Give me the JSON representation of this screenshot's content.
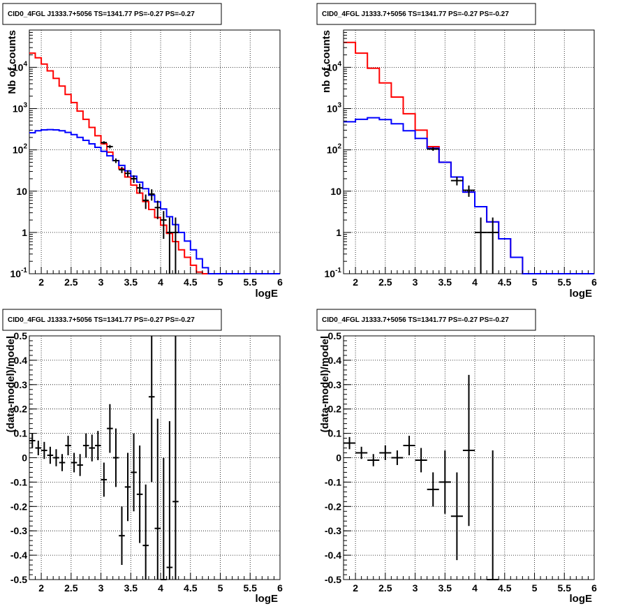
{
  "chart_data": [
    {
      "type": "line",
      "title": "CID0_4FGL J1333.7+5056 TS=1341.77 PS=-0.27 PS=-0.27",
      "xlabel": "logE",
      "ylabel": "Nb of counts",
      "xlim": [
        1.8,
        6
      ],
      "ylim": [
        0.1,
        80000
      ],
      "yscale": "log",
      "grid": true,
      "xticks": [
        "2",
        "2.5",
        "3",
        "3.5",
        "4",
        "4.5",
        "5",
        "5.5",
        "6"
      ],
      "yticks": [
        "10^-1",
        "1",
        "10",
        "10^2",
        "10^3",
        "10^4"
      ],
      "series": [
        {
          "color": "#ff0000",
          "drawstyle": "steps",
          "edges": [
            1.8,
            1.9,
            2.0,
            2.1,
            2.2,
            2.3,
            2.4,
            2.5,
            2.6,
            2.7,
            2.8,
            2.9,
            3.0,
            3.1,
            3.2,
            3.3,
            3.4,
            3.5,
            3.6,
            3.7,
            3.8,
            3.9,
            4.0,
            4.1,
            4.2,
            4.3,
            4.4,
            4.5,
            4.6,
            4.7,
            4.8,
            4.9,
            5.0,
            5.1,
            5.2,
            5.3,
            5.4,
            5.5,
            5.6,
            5.7,
            5.8,
            5.9,
            6.0
          ],
          "values": [
            22000,
            17000,
            12000,
            8200,
            5400,
            3500,
            2200,
            1400,
            870,
            550,
            350,
            220,
            140,
            88,
            55,
            35,
            22,
            14,
            9,
            5.6,
            3.6,
            2.3,
            1.5,
            0.95,
            0.6,
            0.38,
            0.25,
            0.16,
            0.11,
            0.1,
            0.1,
            0.1,
            0.1,
            0.1,
            0.1,
            0.1,
            0.1,
            0.1,
            0.1,
            0.1,
            0.1,
            0.1
          ]
        },
        {
          "color": "#0000ff",
          "drawstyle": "steps",
          "edges": [
            1.8,
            1.9,
            2.0,
            2.1,
            2.2,
            2.3,
            2.4,
            2.5,
            2.6,
            2.7,
            2.8,
            2.9,
            3.0,
            3.1,
            3.2,
            3.3,
            3.4,
            3.5,
            3.6,
            3.7,
            3.8,
            3.9,
            4.0,
            4.1,
            4.2,
            4.3,
            4.4,
            4.5,
            4.6,
            4.7,
            4.8,
            4.9,
            5.0,
            5.1,
            5.2,
            5.3,
            5.4,
            5.5,
            5.6,
            5.7,
            5.8,
            5.9,
            6.0
          ],
          "values": [
            260,
            290,
            305,
            310,
            305,
            290,
            265,
            235,
            200,
            170,
            140,
            115,
            92,
            72,
            55,
            42,
            31,
            23,
            16.5,
            11.5,
            8,
            5.5,
            3.7,
            2.4,
            1.55,
            1.0,
            0.62,
            0.38,
            0.23,
            0.14,
            0.1,
            0.1,
            0.1,
            0.1,
            0.1,
            0.1,
            0.1,
            0.1,
            0.1,
            0.1,
            0.1,
            0.1
          ]
        }
      ],
      "points": {
        "x": [
          3.05,
          3.15,
          3.25,
          3.35,
          3.45,
          3.55,
          3.65,
          3.75,
          3.85,
          3.95,
          4.05,
          4.15,
          4.25
        ],
        "y": [
          150,
          120,
          55,
          33,
          27,
          20,
          12,
          6,
          8.5,
          4,
          2,
          1,
          1
        ],
        "xerr": 0.05,
        "yerr_low": [
          12,
          11,
          7,
          5.5,
          5,
          4.2,
          3.2,
          2.3,
          2.6,
          1.9,
          1.3,
          0.92,
          0.92
        ],
        "yerr_high": [
          12,
          11,
          7,
          5.5,
          5,
          4.2,
          3.2,
          2.3,
          2.6,
          1.9,
          1.3,
          1.3,
          1.3
        ]
      }
    },
    {
      "type": "line",
      "title": "CID0_4FGL J1333.7+5056 TS=1341.77 PS=-0.27 PS=-0.27",
      "xlabel": "logE",
      "ylabel": "nb of counts",
      "xlim": [
        1.8,
        6
      ],
      "ylim": [
        0.1,
        80000
      ],
      "yscale": "log",
      "grid": true,
      "xticks": [
        "2",
        "2.5",
        "3",
        "3.5",
        "4",
        "4.5",
        "5",
        "5.5",
        "6"
      ],
      "yticks": [
        "10^-1",
        "1",
        "10",
        "10^2",
        "10^3",
        "10^4"
      ],
      "series": [
        {
          "color": "#ff0000",
          "drawstyle": "steps",
          "edges": [
            1.8,
            2.0,
            2.2,
            2.4,
            2.6,
            2.8,
            3.0,
            3.2,
            3.4,
            3.6,
            3.8,
            4.0,
            4.2,
            4.4,
            4.6,
            4.8,
            5.0,
            5.2,
            5.4,
            5.6,
            5.8,
            6.0
          ],
          "values": [
            40000,
            22000,
            9500,
            4200,
            1900,
            750,
            300,
            120,
            50,
            22,
            9.5,
            4.2,
            1.8,
            0.7,
            0.25,
            0.1,
            0.1,
            0.1,
            0.1,
            0.1,
            0.1
          ]
        },
        {
          "color": "#0000ff",
          "drawstyle": "steps",
          "edges": [
            1.8,
            2.0,
            2.2,
            2.4,
            2.6,
            2.8,
            3.0,
            3.2,
            3.4,
            3.6,
            3.8,
            4.0,
            4.2,
            4.4,
            4.6,
            4.8,
            5.0,
            5.2,
            5.4,
            5.6,
            5.8,
            6.0
          ],
          "values": [
            480,
            550,
            600,
            540,
            430,
            290,
            190,
            110,
            50,
            22,
            9.5,
            4.2,
            1.8,
            0.7,
            0.25,
            0.1,
            0.1,
            0.1,
            0.1,
            0.1,
            0.1
          ]
        }
      ],
      "points": {
        "x": [
          3.3,
          3.7,
          3.9,
          4.1,
          4.3
        ],
        "y": [
          105,
          18,
          10.5,
          1,
          1
        ],
        "xerr": 0.1,
        "yerr_low": [
          10,
          4.2,
          3.2,
          0.92,
          0.92
        ],
        "yerr_high": [
          10,
          4.2,
          3.2,
          1.3,
          1.3
        ]
      }
    },
    {
      "type": "scatter",
      "title": "CID0_4FGL J1333.7+5056 TS=1341.77 PS=-0.27 PS=-0.27",
      "xlabel": "logE",
      "ylabel": "(data-model)/model",
      "xlim": [
        1.8,
        6
      ],
      "ylim": [
        -0.5,
        0.5
      ],
      "yscale": "linear",
      "grid": true,
      "xticks": [
        "2",
        "2.5",
        "3",
        "3.5",
        "4",
        "4.5",
        "5",
        "5.5",
        "6"
      ],
      "yticks": [
        "-0.5",
        "-0.4",
        "-0.3",
        "-0.2",
        "-0.1",
        "0",
        "0.1",
        "0.2",
        "0.3",
        "0.4",
        "0.5"
      ],
      "points": {
        "x": [
          1.85,
          1.95,
          2.05,
          2.15,
          2.25,
          2.35,
          2.45,
          2.55,
          2.65,
          2.75,
          2.85,
          2.95,
          3.05,
          3.15,
          3.25,
          3.35,
          3.45,
          3.55,
          3.65,
          3.75,
          3.85,
          3.95,
          4.05,
          4.15,
          4.25
        ],
        "y": [
          0.07,
          0.04,
          0.03,
          0.01,
          0.0,
          -0.02,
          0.05,
          -0.02,
          -0.03,
          0.05,
          0.04,
          0.05,
          -0.09,
          0.12,
          0.0,
          -0.32,
          -0.12,
          -0.06,
          -0.15,
          -0.36,
          0.25,
          -0.29,
          -0.5,
          -0.45,
          -0.18
        ],
        "xerr": 0.05,
        "yerr": [
          0.03,
          0.03,
          0.035,
          0.035,
          0.035,
          0.035,
          0.04,
          0.04,
          0.045,
          0.05,
          0.055,
          0.06,
          0.07,
          0.1,
          0.12,
          0.12,
          0.14,
          0.16,
          0.2,
          0.25,
          0.35,
          0.45,
          0.5,
          0.6,
          0.7
        ]
      }
    },
    {
      "type": "scatter",
      "title": "CID0_4FGL J1333.7+5056 TS=1341.77 PS=-0.27 PS=-0.27",
      "xlabel": "logE",
      "ylabel": "(data-model)/model",
      "xlim": [
        1.8,
        6
      ],
      "ylim": [
        -0.5,
        0.5
      ],
      "yscale": "linear",
      "grid": true,
      "xticks": [
        "2",
        "2.5",
        "3",
        "3.5",
        "4",
        "4.5",
        "5",
        "5.5",
        "6"
      ],
      "yticks": [
        "-0.5",
        "-0.4",
        "-0.3",
        "-0.2",
        "-0.1",
        "0",
        "0.1",
        "0.2",
        "0.3",
        "0.4",
        "0.5"
      ],
      "points": {
        "x": [
          1.9,
          2.1,
          2.3,
          2.5,
          2.7,
          2.9,
          3.1,
          3.3,
          3.5,
          3.7,
          3.9,
          4.3
        ],
        "y": [
          0.06,
          0.02,
          -0.01,
          0.02,
          0.0,
          0.05,
          -0.01,
          -0.13,
          -0.1,
          -0.24,
          0.03,
          -0.5
        ],
        "xerr": 0.1,
        "yerr": [
          0.025,
          0.025,
          0.025,
          0.03,
          0.03,
          0.04,
          0.05,
          0.07,
          0.13,
          0.18,
          0.31,
          0.53
        ]
      }
    }
  ]
}
